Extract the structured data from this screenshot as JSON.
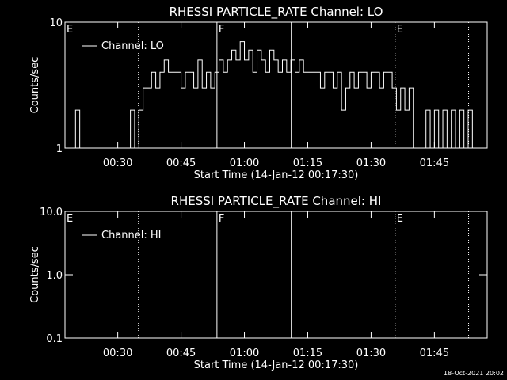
{
  "chart_data": [
    {
      "type": "line",
      "title": "RHESSI PARTICLE_RATE Channel: LO",
      "xlabel": "Start Time (14-Jan-12 00:17:30)",
      "ylabel": "Counts/sec",
      "log_y": true,
      "legend": "upper left",
      "xlim": [
        17.5,
        117.5
      ],
      "xticks": [
        {
          "value": 30,
          "label": "00:30"
        },
        {
          "value": 45,
          "label": "00:45"
        },
        {
          "value": 60,
          "label": "01:00"
        },
        {
          "value": 75,
          "label": "01:15"
        },
        {
          "value": 90,
          "label": "01:30"
        },
        {
          "value": 105,
          "label": "01:45"
        }
      ],
      "ylim": [
        1,
        10
      ],
      "yticks": [
        1,
        10
      ],
      "vlines": [
        {
          "x": 34.9,
          "style": "dotted"
        },
        {
          "x": 53.5,
          "style": "solid"
        },
        {
          "x": 71.1,
          "style": "solid"
        },
        {
          "x": 95.7,
          "style": "dotted"
        },
        {
          "x": 113.1,
          "style": "dotted"
        }
      ],
      "annotations": [
        {
          "text": "E",
          "x": 17.5
        },
        {
          "text": "F",
          "x": 53.5
        },
        {
          "text": "E",
          "x": 95.7
        }
      ],
      "x": [
        18,
        19,
        20,
        21,
        22,
        23,
        24,
        25,
        26,
        27,
        28,
        29,
        30,
        31,
        32,
        33,
        34,
        35,
        36,
        37,
        38,
        39,
        40,
        41,
        42,
        43,
        44,
        45,
        46,
        47,
        48,
        49,
        50,
        51,
        52,
        53,
        54,
        55,
        56,
        57,
        58,
        59,
        60,
        61,
        62,
        63,
        64,
        65,
        66,
        67,
        68,
        69,
        70,
        71,
        72,
        73,
        74,
        75,
        76,
        77,
        78,
        79,
        80,
        81,
        82,
        83,
        84,
        85,
        86,
        87,
        88,
        89,
        90,
        91,
        92,
        93,
        94,
        95,
        96,
        97,
        98,
        99,
        100,
        101,
        102,
        103,
        104,
        105,
        106,
        107,
        108,
        109,
        110,
        111,
        112,
        113,
        114,
        115,
        116,
        117
      ],
      "series": [
        {
          "name": "Channel: LO",
          "color": "#ffffff",
          "values": [
            0,
            0,
            2,
            0,
            0,
            0,
            0,
            0,
            0,
            0,
            0,
            0,
            0,
            0,
            0,
            2,
            1,
            2,
            3,
            3,
            4,
            3,
            4,
            5,
            4,
            4,
            4,
            3,
            4,
            4,
            3,
            5,
            3,
            4,
            3,
            4,
            5,
            4,
            5,
            6,
            5,
            7,
            5,
            6,
            4,
            6,
            5,
            4,
            6,
            5,
            4,
            5,
            4,
            5,
            4,
            5,
            4,
            4,
            4,
            4,
            3,
            4,
            4,
            3,
            4,
            2,
            3,
            4,
            3,
            4,
            4,
            3,
            4,
            4,
            3,
            4,
            4,
            3,
            2,
            3,
            2,
            3,
            0,
            1,
            0,
            2,
            0,
            2,
            1,
            2,
            0,
            2,
            1,
            2,
            0,
            2,
            0,
            0,
            0,
            0
          ]
        }
      ]
    },
    {
      "type": "line",
      "title": "RHESSI PARTICLE_RATE Channel: HI",
      "xlabel": "Start Time (14-Jan-12 00:17:30)",
      "ylabel": "Counts/sec",
      "log_y": true,
      "legend": "upper left",
      "xlim": [
        17.5,
        117.5
      ],
      "xticks": [
        {
          "value": 30,
          "label": "00:30"
        },
        {
          "value": 45,
          "label": "00:45"
        },
        {
          "value": 60,
          "label": "01:00"
        },
        {
          "value": 75,
          "label": "01:15"
        },
        {
          "value": 90,
          "label": "01:30"
        },
        {
          "value": 105,
          "label": "01:45"
        }
      ],
      "ylim": [
        0.1,
        10
      ],
      "yticks": [
        {
          "value": 0.1,
          "label": "0.1"
        },
        {
          "value": 1,
          "label": "1.0"
        },
        {
          "value": 10,
          "label": "10.0"
        }
      ],
      "vlines": [
        {
          "x": 34.9,
          "style": "dotted"
        },
        {
          "x": 53.5,
          "style": "solid"
        },
        {
          "x": 71.1,
          "style": "solid"
        },
        {
          "x": 95.7,
          "style": "dotted"
        },
        {
          "x": 113.1,
          "style": "dotted"
        }
      ],
      "annotations": [
        {
          "text": "E",
          "x": 17.5
        },
        {
          "text": "F",
          "x": 53.5
        },
        {
          "text": "E",
          "x": 95.7
        }
      ],
      "x": [],
      "series": [
        {
          "name": "Channel: HI",
          "color": "#ffffff",
          "values": []
        }
      ]
    }
  ],
  "footer": "18-Oct-2021 20:02"
}
